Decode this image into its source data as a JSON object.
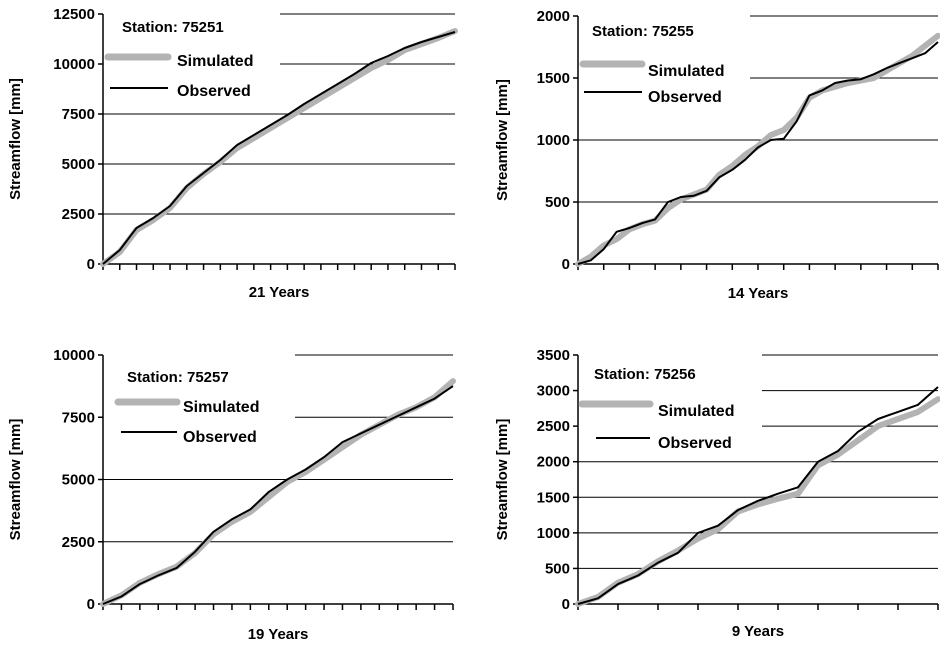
{
  "colors": {
    "simulated": "#b3b3b3",
    "observed": "#000000",
    "grid": "#000000",
    "axis": "#000000"
  },
  "chart_data": [
    {
      "type": "line",
      "station_label": "Station: 75251",
      "xlabel": "21 Years",
      "ylabel": "Streamflow [mm]",
      "ylim": [
        0,
        12500
      ],
      "yticks": [
        0,
        2500,
        5000,
        7500,
        10000,
        12500
      ],
      "ytick_labels": [
        "0",
        "2500",
        "5000",
        "7500",
        "10000",
        "12500"
      ],
      "xlim": [
        0,
        21
      ],
      "x_minor_ticks": 21,
      "legend_position": "top-left",
      "series": [
        {
          "name": "Simulated",
          "points": [
            [
              0,
              0
            ],
            [
              1,
              600
            ],
            [
              2,
              1700
            ],
            [
              3,
              2200
            ],
            [
              4,
              2800
            ],
            [
              5,
              3800
            ],
            [
              6,
              4500
            ],
            [
              7,
              5100
            ],
            [
              8,
              5800
            ],
            [
              9,
              6300
            ],
            [
              10,
              6800
            ],
            [
              11,
              7300
            ],
            [
              12,
              7800
            ],
            [
              13,
              8300
            ],
            [
              14,
              8800
            ],
            [
              15,
              9300
            ],
            [
              16,
              9800
            ],
            [
              17,
              10200
            ],
            [
              18,
              10700
            ],
            [
              19,
              11000
            ],
            [
              20,
              11300
            ],
            [
              21,
              11650
            ]
          ]
        },
        {
          "name": "Observed",
          "points": [
            [
              0,
              0
            ],
            [
              1,
              700
            ],
            [
              2,
              1800
            ],
            [
              3,
              2300
            ],
            [
              4,
              2900
            ],
            [
              5,
              3900
            ],
            [
              6,
              4550
            ],
            [
              7,
              5200
            ],
            [
              8,
              5950
            ],
            [
              9,
              6450
            ],
            [
              10,
              6950
            ],
            [
              11,
              7450
            ],
            [
              12,
              8000
            ],
            [
              13,
              8500
            ],
            [
              14,
              9000
            ],
            [
              15,
              9500
            ],
            [
              16,
              10050
            ],
            [
              17,
              10400
            ],
            [
              18,
              10800
            ],
            [
              19,
              11100
            ],
            [
              20,
              11350
            ],
            [
              21,
              11600
            ]
          ]
        }
      ]
    },
    {
      "type": "line",
      "station_label": "Station: 75255",
      "xlabel": "14 Years",
      "ylabel": "Streamflow [mm]",
      "ylim": [
        0,
        2000
      ],
      "yticks": [
        0,
        500,
        1000,
        1500,
        2000
      ],
      "ytick_labels": [
        "0",
        "500",
        "1000",
        "1500",
        "2000"
      ],
      "xlim": [
        0,
        14
      ],
      "x_minor_ticks": 14,
      "legend_position": "top-left",
      "series": [
        {
          "name": "Simulated",
          "points": [
            [
              0,
              0
            ],
            [
              0.5,
              60
            ],
            [
              1,
              150
            ],
            [
              1.5,
              200
            ],
            [
              2,
              280
            ],
            [
              2.5,
              320
            ],
            [
              3,
              350
            ],
            [
              3.5,
              450
            ],
            [
              4,
              520
            ],
            [
              4.5,
              560
            ],
            [
              5,
              600
            ],
            [
              5.5,
              720
            ],
            [
              6,
              790
            ],
            [
              6.5,
              880
            ],
            [
              7,
              950
            ],
            [
              7.5,
              1040
            ],
            [
              8,
              1080
            ],
            [
              8.5,
              1180
            ],
            [
              9,
              1340
            ],
            [
              9.5,
              1400
            ],
            [
              10,
              1430
            ],
            [
              10.5,
              1460
            ],
            [
              11,
              1480
            ],
            [
              11.5,
              1500
            ],
            [
              12,
              1560
            ],
            [
              12.5,
              1620
            ],
            [
              13,
              1680
            ],
            [
              13.5,
              1760
            ],
            [
              14,
              1840
            ]
          ]
        },
        {
          "name": "Observed",
          "points": [
            [
              0,
              0
            ],
            [
              0.5,
              30
            ],
            [
              1,
              120
            ],
            [
              1.5,
              260
            ],
            [
              2,
              290
            ],
            [
              2.5,
              330
            ],
            [
              3,
              360
            ],
            [
              3.5,
              500
            ],
            [
              4,
              540
            ],
            [
              4.5,
              550
            ],
            [
              5,
              590
            ],
            [
              5.5,
              700
            ],
            [
              6,
              760
            ],
            [
              6.5,
              840
            ],
            [
              7,
              940
            ],
            [
              7.5,
              1000
            ],
            [
              8,
              1010
            ],
            [
              8.5,
              1150
            ],
            [
              9,
              1360
            ],
            [
              9.5,
              1400
            ],
            [
              10,
              1460
            ],
            [
              10.5,
              1480
            ],
            [
              11,
              1490
            ],
            [
              11.5,
              1530
            ],
            [
              12,
              1580
            ],
            [
              12.5,
              1620
            ],
            [
              13,
              1660
            ],
            [
              13.5,
              1700
            ],
            [
              14,
              1790
            ]
          ]
        }
      ]
    },
    {
      "type": "line",
      "station_label": "Station: 75257",
      "xlabel": "19 Years",
      "ylabel": "Streamflow [mm]",
      "ylim": [
        0,
        10000
      ],
      "yticks": [
        0,
        2500,
        5000,
        7500,
        10000
      ],
      "ytick_labels": [
        "0",
        "2500",
        "5000",
        "7500",
        "10000"
      ],
      "xlim": [
        0,
        19
      ],
      "x_minor_ticks": 19,
      "legend_position": "top-left",
      "series": [
        {
          "name": "Simulated",
          "points": [
            [
              0,
              0
            ],
            [
              1,
              350
            ],
            [
              2,
              850
            ],
            [
              3,
              1200
            ],
            [
              4,
              1500
            ],
            [
              5,
              2050
            ],
            [
              6,
              2800
            ],
            [
              7,
              3300
            ],
            [
              8,
              3700
            ],
            [
              9,
              4300
            ],
            [
              10,
              4900
            ],
            [
              11,
              5300
            ],
            [
              12,
              5800
            ],
            [
              13,
              6300
            ],
            [
              14,
              6800
            ],
            [
              15,
              7200
            ],
            [
              16,
              7600
            ],
            [
              17,
              7900
            ],
            [
              18,
              8300
            ],
            [
              19,
              8950
            ]
          ]
        },
        {
          "name": "Observed",
          "points": [
            [
              0,
              0
            ],
            [
              1,
              300
            ],
            [
              2,
              800
            ],
            [
              3,
              1150
            ],
            [
              4,
              1450
            ],
            [
              5,
              2100
            ],
            [
              6,
              2900
            ],
            [
              7,
              3400
            ],
            [
              8,
              3800
            ],
            [
              9,
              4500
            ],
            [
              10,
              5000
            ],
            [
              11,
              5400
            ],
            [
              12,
              5900
            ],
            [
              13,
              6500
            ],
            [
              14,
              6850
            ],
            [
              15,
              7200
            ],
            [
              16,
              7550
            ],
            [
              17,
              7900
            ],
            [
              18,
              8250
            ],
            [
              19,
              8750
            ]
          ]
        }
      ]
    },
    {
      "type": "line",
      "station_label": "Station: 75256",
      "xlabel": "9 Years",
      "ylabel": "Streamflow [mm]",
      "ylim": [
        0,
        3500
      ],
      "yticks": [
        0,
        500,
        1000,
        1500,
        2000,
        2500,
        3000,
        3500
      ],
      "ytick_labels": [
        "0",
        "500",
        "1000",
        "1500",
        "2000",
        "2500",
        "3000",
        "3500"
      ],
      "xlim": [
        0,
        9
      ],
      "x_minor_ticks": 9,
      "legend_position": "top-left",
      "series": [
        {
          "name": "Simulated",
          "points": [
            [
              0,
              0
            ],
            [
              0.5,
              100
            ],
            [
              1,
              300
            ],
            [
              1.5,
              420
            ],
            [
              2,
              600
            ],
            [
              2.5,
              750
            ],
            [
              3,
              920
            ],
            [
              3.5,
              1050
            ],
            [
              4,
              1300
            ],
            [
              4.5,
              1400
            ],
            [
              5,
              1480
            ],
            [
              5.5,
              1550
            ],
            [
              6,
              1950
            ],
            [
              6.5,
              2100
            ],
            [
              7,
              2300
            ],
            [
              7.5,
              2500
            ],
            [
              8,
              2600
            ],
            [
              8.5,
              2700
            ],
            [
              9,
              2880
            ]
          ]
        },
        {
          "name": "Observed",
          "points": [
            [
              0,
              0
            ],
            [
              0.5,
              80
            ],
            [
              1,
              280
            ],
            [
              1.5,
              400
            ],
            [
              2,
              580
            ],
            [
              2.5,
              720
            ],
            [
              3,
              1000
            ],
            [
              3.5,
              1100
            ],
            [
              4,
              1320
            ],
            [
              4.5,
              1450
            ],
            [
              5,
              1550
            ],
            [
              5.5,
              1640
            ],
            [
              6,
              2000
            ],
            [
              6.5,
              2150
            ],
            [
              7,
              2420
            ],
            [
              7.5,
              2600
            ],
            [
              8,
              2700
            ],
            [
              8.5,
              2800
            ],
            [
              9,
              3050
            ]
          ]
        }
      ]
    }
  ]
}
